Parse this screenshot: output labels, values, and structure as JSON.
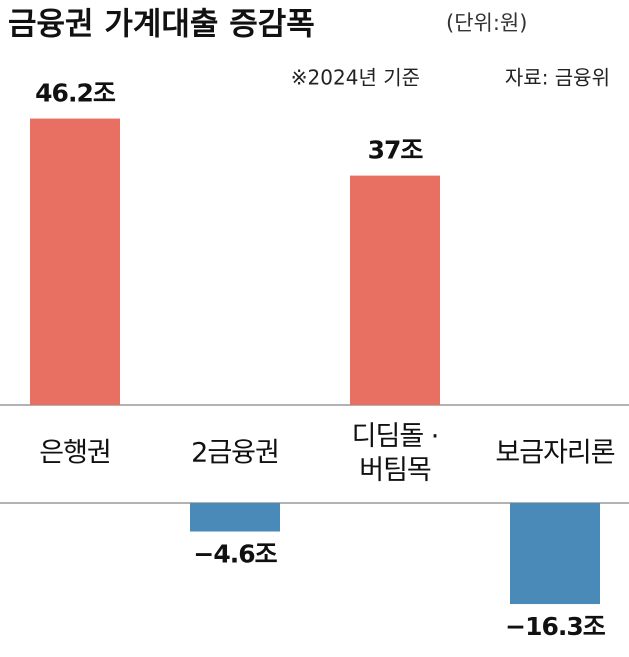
{
  "chart_data": {
    "type": "bar",
    "title": "금융권 가계대출 증감폭",
    "subtitle": "(단위:원)",
    "notes": [
      "※2024년 기준",
      "자료: 금융위"
    ],
    "categories": [
      "은행권",
      "2금융권",
      "디딤돌 ·\n버팀목",
      "보금자리론"
    ],
    "values": [
      46.2,
      -4.6,
      37,
      -16.3
    ],
    "value_labels": [
      "46.2조",
      "−4.6조",
      "37조",
      "−16.3조"
    ],
    "colors": [
      "#e87063",
      "#4a8ab8",
      "#e87063",
      "#4a8ab8"
    ]
  }
}
